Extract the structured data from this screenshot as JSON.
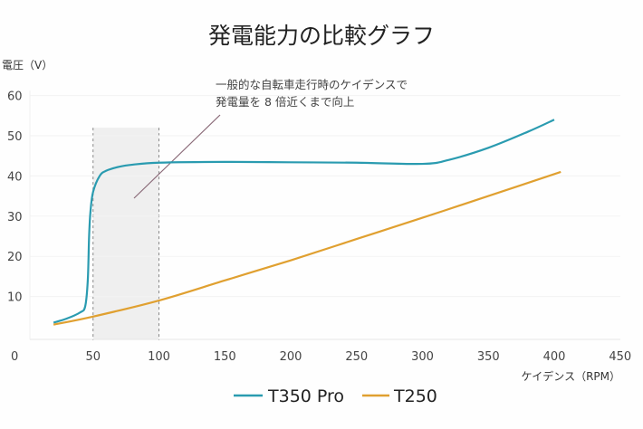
{
  "chart_data": {
    "type": "line",
    "title": "発電能力の比較グラフ",
    "ylabel": "電圧（V）",
    "xlabel": "ケイデンス（RPM）",
    "xlim": [
      0,
      450
    ],
    "ylim": [
      0,
      60
    ],
    "xticks": [
      0,
      50,
      100,
      150,
      200,
      250,
      300,
      350,
      400,
      450
    ],
    "yticks": [
      10,
      20,
      30,
      40,
      50,
      60
    ],
    "grid": true,
    "legend": "bottom",
    "highlight_range": [
      50,
      100
    ],
    "annotation": [
      "一般的な自転車走行時のケイデンスで",
      "発電量を 8 倍近くまで向上"
    ],
    "series": [
      {
        "name": "T350 Pro",
        "color": "#2a9bb0",
        "x": [
          20,
          30,
          40,
          44,
          46,
          47,
          48,
          50,
          55,
          60,
          70,
          80,
          100,
          150,
          200,
          250,
          300,
          320,
          350,
          380,
          400
        ],
        "y": [
          3.5,
          4.5,
          6,
          7.5,
          14,
          25,
          31,
          36,
          40,
          41.3,
          42.3,
          42.8,
          43.3,
          43.5,
          43.4,
          43.3,
          43,
          44,
          47,
          51,
          54
        ]
      },
      {
        "name": "T250",
        "color": "#e0a030",
        "x": [
          20,
          50,
          100,
          150,
          200,
          250,
          300,
          350,
          405
        ],
        "y": [
          3,
          5,
          9,
          14,
          19,
          24.3,
          29.6,
          35,
          41
        ]
      }
    ]
  }
}
